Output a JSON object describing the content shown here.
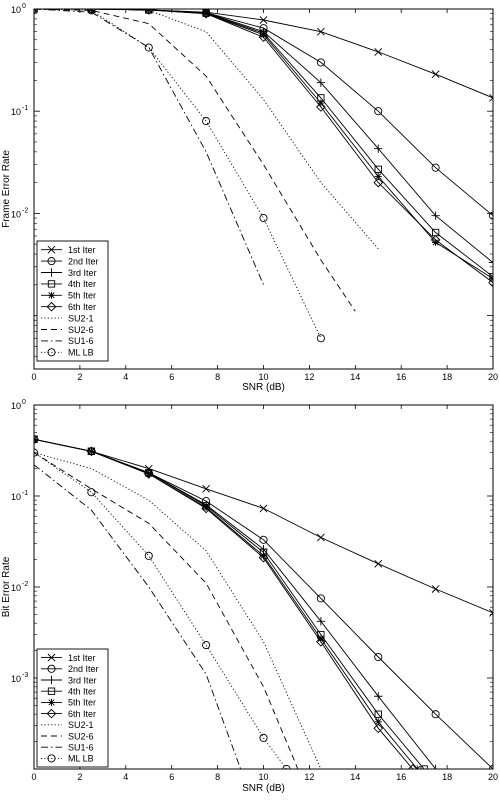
{
  "chart_data": [
    {
      "type": "line",
      "xlabel": "SNR (dB)",
      "ylabel": "Frame Error Rate",
      "yscale": "log",
      "xlim": [
        0,
        20
      ],
      "ylim": [
        0.0003,
        1
      ],
      "xticks": [
        "0",
        "2",
        "4",
        "6",
        "8",
        "10",
        "12",
        "14",
        "16",
        "18",
        "20"
      ],
      "yticks": [
        {
          "base": "10",
          "exp": "-2",
          "value": 0.01
        },
        {
          "base": "10",
          "exp": "-1",
          "value": 0.1
        },
        {
          "base": "10",
          "exp": "0",
          "value": 1
        }
      ],
      "grid": false,
      "legend_position": "bottom-left",
      "series": [
        {
          "name": "1st Iter",
          "style": "solid",
          "marker": "x",
          "x": [
            0,
            2.5,
            5,
            7.5,
            10,
            12.5,
            15,
            17.5,
            20
          ],
          "y": [
            1,
            1,
            0.98,
            0.93,
            0.78,
            0.6,
            0.38,
            0.23,
            0.135
          ]
        },
        {
          "name": "2nd Iter",
          "style": "solid",
          "marker": "circle",
          "x": [
            0,
            2.5,
            5,
            7.5,
            10,
            12.5,
            15,
            17.5,
            20
          ],
          "y": [
            1,
            1,
            0.98,
            0.92,
            0.65,
            0.3,
            0.1,
            0.028,
            0.0095
          ]
        },
        {
          "name": "3rd Iter",
          "style": "solid",
          "marker": "plus",
          "x": [
            0,
            2.5,
            5,
            7.5,
            10,
            12.5,
            15,
            17.5,
            20
          ],
          "y": [
            1,
            1,
            0.98,
            0.92,
            0.6,
            0.19,
            0.043,
            0.0095,
            0.0033
          ]
        },
        {
          "name": "4th Iter",
          "style": "solid",
          "marker": "square",
          "x": [
            0,
            2.5,
            5,
            7.5,
            10,
            12.5,
            15,
            17.5,
            20
          ],
          "y": [
            1,
            1,
            0.98,
            0.91,
            0.58,
            0.135,
            0.027,
            0.0065,
            0.0024
          ]
        },
        {
          "name": "5th Iter",
          "style": "solid",
          "marker": "star",
          "x": [
            0,
            2.5,
            5,
            7.5,
            10,
            12.5,
            15,
            17.5,
            20
          ],
          "y": [
            1,
            1,
            0.98,
            0.9,
            0.56,
            0.12,
            0.023,
            0.0052,
            0.0023
          ]
        },
        {
          "name": "6th Iter",
          "style": "solid",
          "marker": "diamond",
          "x": [
            0,
            2.5,
            5,
            7.5,
            10,
            12.5,
            15,
            17.5,
            20
          ],
          "y": [
            1,
            1,
            0.98,
            0.9,
            0.53,
            0.11,
            0.02,
            0.0055,
            0.0021
          ]
        },
        {
          "name": "SU2-1",
          "style": "dotted",
          "marker": "none",
          "x": [
            0,
            2.5,
            5,
            7.5,
            10,
            12.5,
            15
          ],
          "y": [
            1,
            1,
            0.97,
            0.6,
            0.13,
            0.02,
            0.0045
          ]
        },
        {
          "name": "SU2-6",
          "style": "dashed",
          "marker": "none",
          "x": [
            0,
            2.5,
            5,
            7.5,
            10,
            12.5,
            14
          ],
          "y": [
            1,
            0.97,
            0.72,
            0.22,
            0.03,
            0.0035,
            0.0011
          ]
        },
        {
          "name": "SU1-6",
          "style": "dashdot",
          "marker": "none",
          "x": [
            0,
            2.5,
            5,
            7.5,
            10
          ],
          "y": [
            1,
            0.93,
            0.42,
            0.04,
            0.002
          ]
        },
        {
          "name": "ML LB",
          "style": "dotted",
          "marker": "circle",
          "x": [
            0,
            2.5,
            5,
            7.5,
            10,
            12.5
          ],
          "y": [
            1,
            0.97,
            0.42,
            0.08,
            0.009,
            0.0006
          ]
        }
      ]
    },
    {
      "type": "line",
      "xlabel": "SNR (dB)",
      "ylabel": "Bit Error Rate",
      "yscale": "log",
      "xlim": [
        0,
        20
      ],
      "ylim": [
        0.0001,
        1
      ],
      "xticks": [
        "0",
        "2",
        "4",
        "6",
        "8",
        "10",
        "12",
        "14",
        "16",
        "18",
        "20"
      ],
      "yticks": [
        {
          "base": "10",
          "exp": "-3",
          "value": 0.001
        },
        {
          "base": "10",
          "exp": "-2",
          "value": 0.01
        },
        {
          "base": "10",
          "exp": "-1",
          "value": 0.1
        },
        {
          "base": "10",
          "exp": "0",
          "value": 1
        }
      ],
      "grid": false,
      "legend_position": "bottom-left",
      "series": [
        {
          "name": "1st Iter",
          "style": "solid",
          "marker": "x",
          "x": [
            0,
            2.5,
            5,
            7.5,
            10,
            12.5,
            15,
            17.5,
            20
          ],
          "y": [
            0.42,
            0.31,
            0.2,
            0.12,
            0.073,
            0.035,
            0.018,
            0.0095,
            0.0052
          ]
        },
        {
          "name": "2nd Iter",
          "style": "solid",
          "marker": "circle",
          "x": [
            0,
            2.5,
            5,
            7.5,
            10,
            12.5,
            15,
            17.5,
            20
          ],
          "y": [
            0.42,
            0.31,
            0.18,
            0.088,
            0.033,
            0.0075,
            0.0017,
            0.0004,
            0.0001
          ]
        },
        {
          "name": "3rd Iter",
          "style": "solid",
          "marker": "plus",
          "x": [
            0,
            2.5,
            5,
            7.5,
            10,
            12.5,
            15,
            17.5
          ],
          "y": [
            0.42,
            0.31,
            0.18,
            0.08,
            0.026,
            0.0042,
            0.00063,
            0.0001
          ]
        },
        {
          "name": "4th Iter",
          "style": "solid",
          "marker": "square",
          "x": [
            0,
            2.5,
            5,
            7.5,
            10,
            12.5,
            15,
            17
          ],
          "y": [
            0.42,
            0.31,
            0.18,
            0.078,
            0.024,
            0.003,
            0.0004,
            0.0001
          ]
        },
        {
          "name": "5th Iter",
          "style": "solid",
          "marker": "star",
          "x": [
            0,
            2.5,
            5,
            7.5,
            10,
            12.5,
            15,
            16.7
          ],
          "y": [
            0.42,
            0.31,
            0.175,
            0.075,
            0.022,
            0.0027,
            0.00033,
            0.0001
          ]
        },
        {
          "name": "6th Iter",
          "style": "solid",
          "marker": "diamond",
          "x": [
            0,
            2.5,
            5,
            7.5,
            10,
            12.5,
            15,
            16.5
          ],
          "y": [
            0.42,
            0.31,
            0.175,
            0.073,
            0.021,
            0.0025,
            0.00028,
            0.0001
          ]
        },
        {
          "name": "SU2-1",
          "style": "dotted",
          "marker": "none",
          "x": [
            0,
            2.5,
            5,
            7.5,
            10,
            12.5
          ],
          "y": [
            0.3,
            0.2,
            0.09,
            0.025,
            0.0025,
            0.0001
          ]
        },
        {
          "name": "SU2-6",
          "style": "dashed",
          "marker": "none",
          "x": [
            0,
            2.5,
            5,
            7.5,
            10,
            11.5
          ],
          "y": [
            0.3,
            0.12,
            0.05,
            0.011,
            0.0008,
            0.0001
          ]
        },
        {
          "name": "SU1-6",
          "style": "dashdot",
          "marker": "none",
          "x": [
            0,
            2.5,
            5,
            7.5,
            9
          ],
          "y": [
            0.22,
            0.07,
            0.01,
            0.0011,
            0.0001
          ]
        },
        {
          "name": "ML LB",
          "style": "dotted",
          "marker": "circle",
          "x": [
            0,
            2.5,
            5,
            7.5,
            10,
            11
          ],
          "y": [
            0.3,
            0.11,
            0.022,
            0.0023,
            0.00022,
            0.0001
          ]
        }
      ]
    }
  ]
}
